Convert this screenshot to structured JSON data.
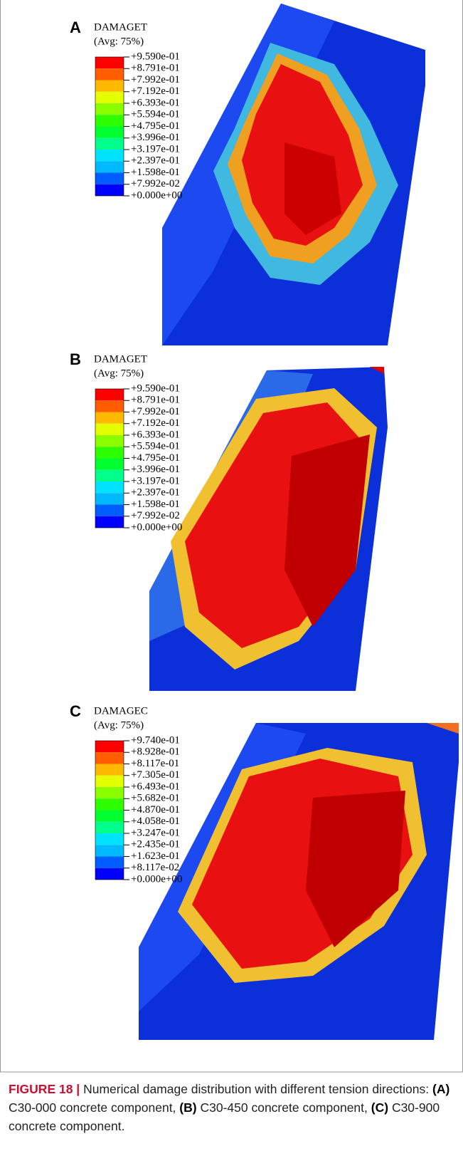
{
  "panels": [
    {
      "label": "A",
      "variable": "DAMAGET",
      "averaging": "(Avg: 75%)",
      "legend": [
        "+9.590e-01",
        "+8.791e-01",
        "+7.992e-01",
        "+7.192e-01",
        "+6.393e-01",
        "+5.594e-01",
        "+4.795e-01",
        "+3.996e-01",
        "+3.197e-01",
        "+2.397e-01",
        "+1.598e-01",
        "+7.992e-02",
        "+0.000e+00"
      ]
    },
    {
      "label": "B",
      "variable": "DAMAGET",
      "averaging": "(Avg: 75%)",
      "legend": [
        "+9.590e-01",
        "+8.791e-01",
        "+7.992e-01",
        "+7.192e-01",
        "+6.393e-01",
        "+5.594e-01",
        "+4.795e-01",
        "+3.996e-01",
        "+3.197e-01",
        "+2.397e-01",
        "+1.598e-01",
        "+7.992e-02",
        "+0.000e+00"
      ]
    },
    {
      "label": "C",
      "variable": "DAMAGEC",
      "averaging": "(Avg: 75%)",
      "legend": [
        "+9.740e-01",
        "+8.928e-01",
        "+8.117e-01",
        "+7.305e-01",
        "+6.493e-01",
        "+5.682e-01",
        "+4.870e-01",
        "+4.058e-01",
        "+3.247e-01",
        "+2.435e-01",
        "+1.623e-01",
        "+8.117e-02",
        "+0.000e+00"
      ]
    }
  ],
  "caption": {
    "label": "FIGURE 18 |",
    "text": "Numerical damage distribution with different tension directions:",
    "items": [
      {
        "tag": "(A)",
        "text": "C30-000 concrete component,"
      },
      {
        "tag": "(B)",
        "text": "C30-450 concrete component,"
      },
      {
        "tag": "(C)",
        "text": "C30-900 concrete component."
      }
    ]
  }
}
